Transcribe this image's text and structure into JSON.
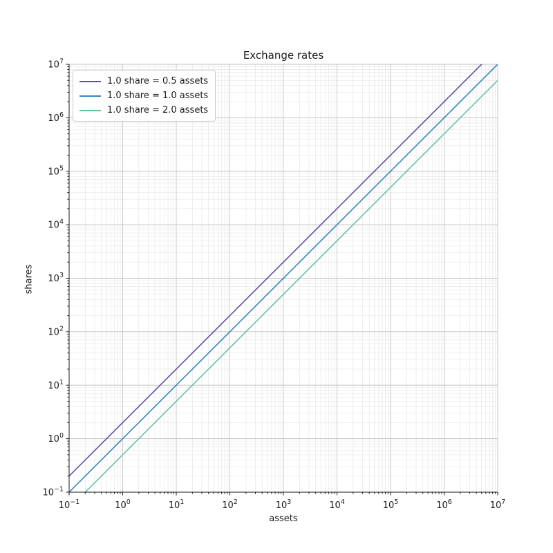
{
  "figure": {
    "title": "Exchange rates",
    "xlabel": "assets",
    "ylabel": "shares",
    "background": "#ffffff",
    "text_color": "#1a1a1a"
  },
  "chart_data": {
    "type": "line",
    "title": "Exchange rates",
    "xlabel": "assets",
    "ylabel": "shares",
    "x_scale": "log",
    "y_scale": "log",
    "xlim": [
      0.1,
      10000000
    ],
    "ylim": [
      0.1,
      10000000
    ],
    "exp_range": [
      -1,
      7
    ],
    "tick_base": 10,
    "x_tick_labels": [
      "10^-1",
      "10^0",
      "10^1",
      "10^2",
      "10^3",
      "10^4",
      "10^5",
      "10^6",
      "10^7"
    ],
    "y_tick_labels": [
      "10^-1",
      "10^0",
      "10^1",
      "10^2",
      "10^3",
      "10^4",
      "10^5",
      "10^6",
      "10^7"
    ],
    "grid": {
      "major": true,
      "minor": true,
      "major_color": "#c2c2c2",
      "minor_color": "#e7e7e7"
    },
    "axis_color": "#1a1a1a",
    "legend": {
      "position": "upper left",
      "border_color": "#cccccc"
    },
    "series": [
      {
        "label": "1.0 share = 0.5 assets",
        "color": "#5e4fa2",
        "assets_per_share": 0.5,
        "points": [
          [
            0.1,
            0.2
          ],
          [
            10000000,
            20000000
          ]
        ]
      },
      {
        "label": "1.0 share = 1.0 assets",
        "color": "#3288bd",
        "assets_per_share": 1.0,
        "points": [
          [
            0.1,
            0.1
          ],
          [
            10000000,
            10000000
          ]
        ]
      },
      {
        "label": "1.0 share = 2.0 assets",
        "color": "#66c2a5",
        "assets_per_share": 2.0,
        "points": [
          [
            0.1,
            0.05
          ],
          [
            10000000,
            5000000
          ]
        ]
      }
    ]
  }
}
